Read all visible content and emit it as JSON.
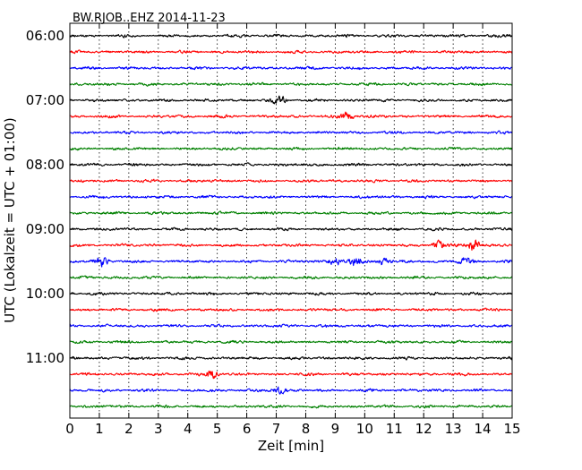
{
  "chart_data": {
    "type": "line",
    "title": "BW.RJOB..EHZ 2014-11-23",
    "xlabel": "Zeit  [min]",
    "ylabel": "UTC (Lokalzeit = UTC + 01:00)",
    "xlim": [
      0,
      15
    ],
    "x_ticks": [
      0,
      1,
      2,
      3,
      4,
      5,
      6,
      7,
      8,
      9,
      10,
      11,
      12,
      13,
      14,
      15
    ],
    "x_tick_labels": [
      "0",
      "1",
      "2",
      "3",
      "4",
      "5",
      "6",
      "7",
      "8",
      "9",
      "10",
      "11",
      "12",
      "13",
      "14",
      "15"
    ],
    "y_tick_labels": [
      "06:00",
      "07:00",
      "08:00",
      "09:00",
      "10:00",
      "11:00"
    ],
    "y_tick_rows": [
      0,
      4,
      8,
      12,
      16,
      20
    ],
    "grid": "vertical dotted",
    "trace_colors": [
      "#000000",
      "#ff0000",
      "#0000ff",
      "#008000"
    ],
    "traces": [
      {
        "start": "06:00",
        "color": "#000000",
        "events": []
      },
      {
        "start": "06:15",
        "color": "#ff0000",
        "events": []
      },
      {
        "start": "06:30",
        "color": "#0000ff",
        "events": []
      },
      {
        "start": "06:45",
        "color": "#008000",
        "events": []
      },
      {
        "start": "07:00",
        "color": "#000000",
        "events": [
          {
            "t": 7.1,
            "amp": 4
          }
        ]
      },
      {
        "start": "07:15",
        "color": "#ff0000",
        "events": [
          {
            "t": 9.4,
            "amp": 4
          }
        ]
      },
      {
        "start": "07:30",
        "color": "#0000ff",
        "events": []
      },
      {
        "start": "07:45",
        "color": "#008000",
        "events": []
      },
      {
        "start": "08:00",
        "color": "#000000",
        "events": []
      },
      {
        "start": "08:15",
        "color": "#ff0000",
        "events": []
      },
      {
        "start": "08:30",
        "color": "#0000ff",
        "events": []
      },
      {
        "start": "08:45",
        "color": "#008000",
        "events": []
      },
      {
        "start": "09:00",
        "color": "#000000",
        "events": []
      },
      {
        "start": "09:15",
        "color": "#ff0000",
        "events": [
          {
            "t": 12.5,
            "amp": 4
          },
          {
            "t": 13.7,
            "amp": 6
          }
        ]
      },
      {
        "start": "09:30",
        "color": "#0000ff",
        "events": [
          {
            "t": 1.1,
            "amp": 4
          },
          {
            "t": 9.0,
            "amp": 4
          },
          {
            "t": 9.7,
            "amp": 4
          },
          {
            "t": 10.6,
            "amp": 4
          },
          {
            "t": 13.4,
            "amp": 3
          }
        ]
      },
      {
        "start": "09:45",
        "color": "#008000",
        "events": []
      },
      {
        "start": "10:00",
        "color": "#000000",
        "events": []
      },
      {
        "start": "10:15",
        "color": "#ff0000",
        "events": []
      },
      {
        "start": "10:30",
        "color": "#0000ff",
        "events": []
      },
      {
        "start": "10:45",
        "color": "#008000",
        "events": []
      },
      {
        "start": "11:00",
        "color": "#000000",
        "events": []
      },
      {
        "start": "11:15",
        "color": "#ff0000",
        "events": [
          {
            "t": 4.8,
            "amp": 4
          }
        ]
      },
      {
        "start": "11:30",
        "color": "#0000ff",
        "events": [
          {
            "t": 7.1,
            "amp": 3
          }
        ]
      },
      {
        "start": "11:45",
        "color": "#008000",
        "events": []
      }
    ]
  }
}
